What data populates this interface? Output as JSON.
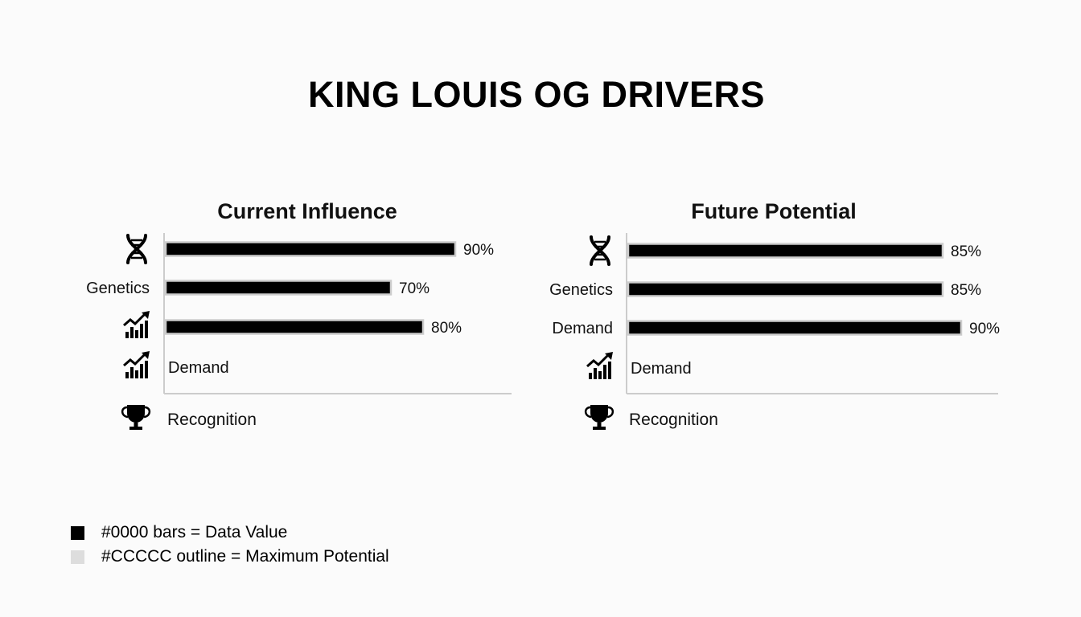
{
  "title": "KING LOUIS OG DRIVERS",
  "colors": {
    "bar": "#000000",
    "bar_outline": "#CCCCCC",
    "axis": "#cccccc",
    "text": "#111111",
    "legend_fill": "#dddddd"
  },
  "legend": [
    {
      "label": "#0000 bars = Data Value",
      "color": "#000000"
    },
    {
      "label": "#CCCCC outline = Maximum Potential",
      "color": "#dddddd"
    }
  ],
  "chart_data": [
    {
      "type": "bar",
      "orientation": "horizontal",
      "title": "Current Influence",
      "rows": [
        {
          "label": "",
          "icon": "dna-icon",
          "value": 90,
          "value_label": "90%"
        },
        {
          "label": "Genetics",
          "icon": "",
          "value": 70,
          "value_label": "70%"
        },
        {
          "label": "",
          "icon": "growth-chart-icon",
          "value": 80,
          "value_label": "80%"
        },
        {
          "label": "Demand",
          "icon": "growth-chart-icon",
          "value": null,
          "value_label": ""
        }
      ],
      "below_axis": {
        "label": "Recognition",
        "icon": "trophy-icon"
      }
    },
    {
      "type": "bar",
      "orientation": "horizontal",
      "title": "Future Potential",
      "rows": [
        {
          "label": "",
          "icon": "dna-icon",
          "value": 85,
          "value_label": "85%"
        },
        {
          "label": "Genetics",
          "icon": "",
          "value": 85,
          "value_label": "85%"
        },
        {
          "label": "Demand",
          "icon": "",
          "value": 90,
          "value_label": "90%"
        },
        {
          "label": "Demand",
          "icon": "growth-chart-icon",
          "value": null,
          "value_label": ""
        }
      ],
      "below_axis": {
        "label": "Recognition",
        "icon": "trophy-icon"
      }
    }
  ]
}
